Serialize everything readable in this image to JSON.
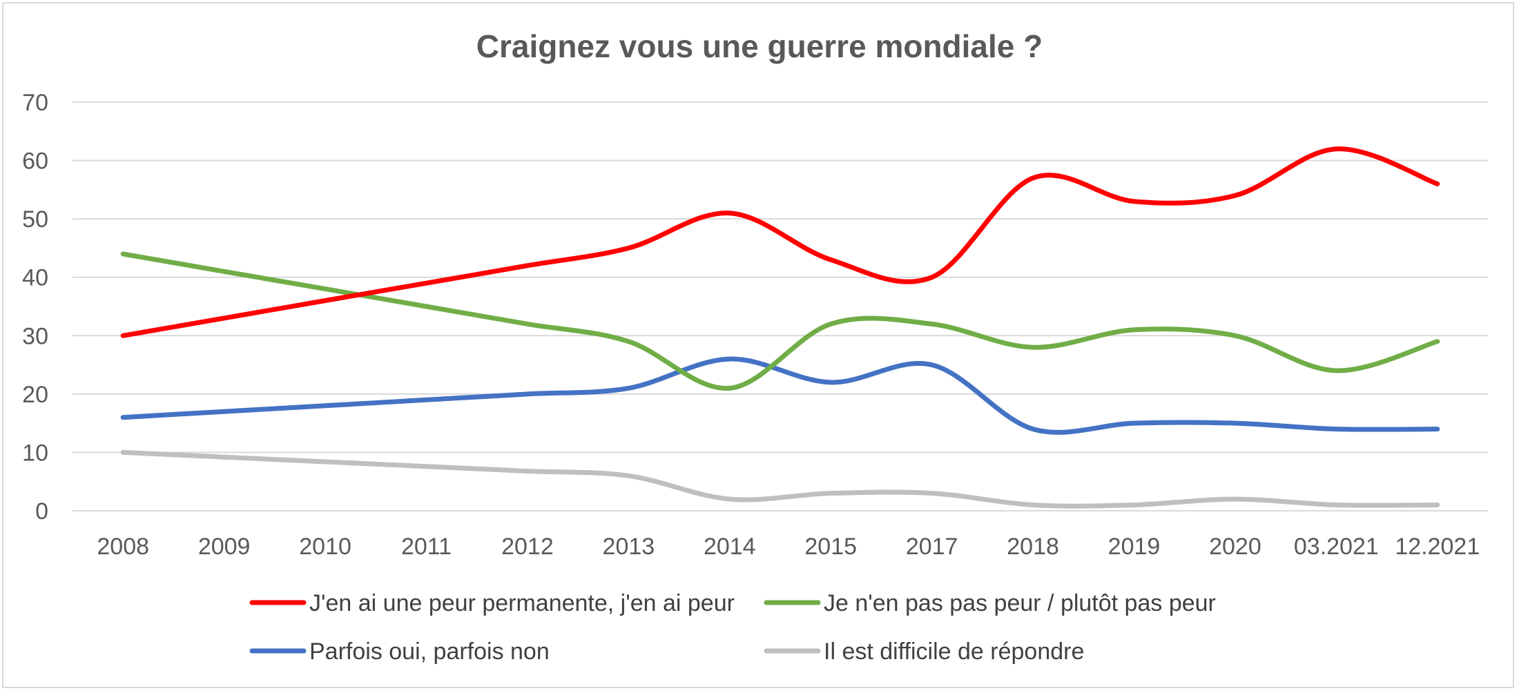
{
  "chart_data": {
    "type": "line",
    "title": "Craignez vous une guerre mondiale ?",
    "xlabel": "",
    "ylabel": "",
    "categories": [
      "2008",
      "2009",
      "2010",
      "2011",
      "2012",
      "2013",
      "2014",
      "2015",
      "2017",
      "2018",
      "2019",
      "2020",
      "03.2021",
      "12.2021"
    ],
    "ylim": [
      0,
      70
    ],
    "yticks": [
      0,
      10,
      20,
      30,
      40,
      50,
      60,
      70
    ],
    "grid": true,
    "smooth": true,
    "legend_position": "bottom",
    "series": [
      {
        "name": "J'en ai une peur permanente, j'en ai peur",
        "color": "#ff0000",
        "values": [
          30,
          33,
          36,
          39,
          42,
          45,
          51,
          43,
          40,
          57,
          53,
          54,
          62,
          56
        ]
      },
      {
        "name": "Je n'en pas pas peur / plutôt pas peur",
        "color": "#70ad47",
        "values": [
          44,
          41,
          38,
          35,
          32,
          29,
          21,
          32,
          32,
          28,
          31,
          30,
          24,
          29
        ]
      },
      {
        "name": "Parfois oui, parfois non",
        "color": "#4472c4",
        "values": [
          16,
          17,
          18,
          19,
          20,
          21,
          26,
          22,
          25,
          14,
          15,
          15,
          14,
          14
        ]
      },
      {
        "name": "Il est difficile de répondre",
        "color": "#bfbfbf",
        "values": [
          10,
          9.2,
          8.4,
          7.6,
          6.8,
          6,
          2,
          3,
          3,
          1,
          1,
          2,
          1,
          1
        ]
      }
    ]
  }
}
